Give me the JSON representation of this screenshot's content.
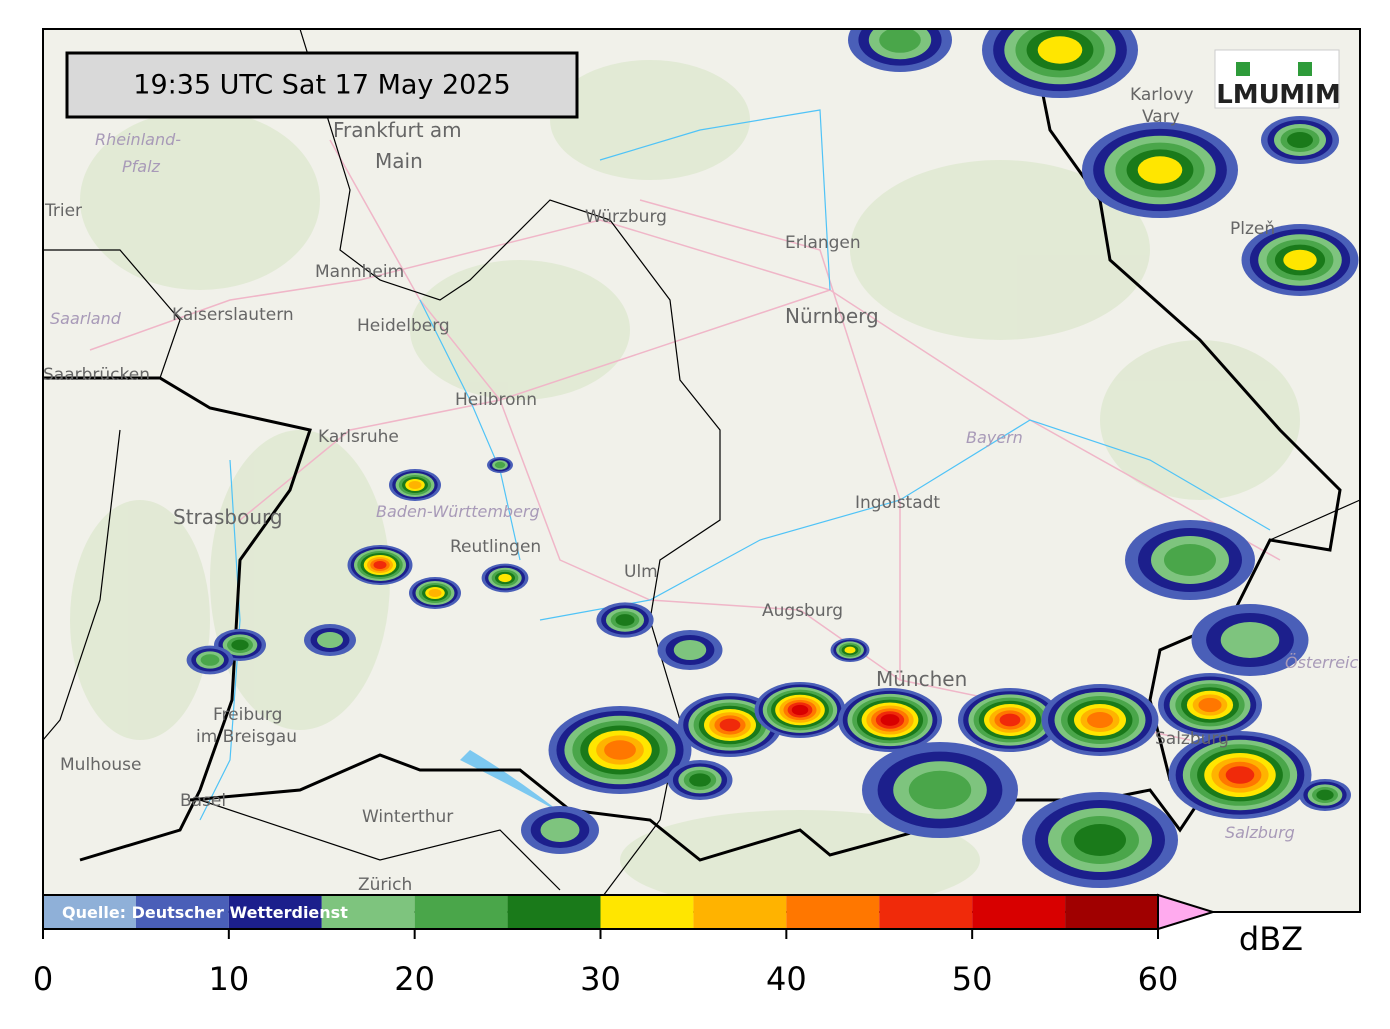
{
  "timestamp": "19:35 UTC  Sat 17 May 2025",
  "logos": [
    "LMU",
    "MIM"
  ],
  "map": {
    "cities": [
      "Frankfurt am",
      "Main",
      "Trier",
      "Würzburg",
      "Karlovy",
      "Vary",
      "Erlangen",
      "Nürnberg",
      "Mannheim",
      "Kaiserslautern",
      "Heidelberg",
      "Saarbrücken",
      "Heilbronn",
      "Karlsruhe",
      "Plzeň",
      "Ingolstadt",
      "Strasbourg",
      "Reutlingen",
      "Ulm",
      "Augsburg",
      "München",
      "Freiburg",
      "im Breisgau",
      "Mulhouse",
      "Basel",
      "Winterthur",
      "Zürich",
      "Salzburg"
    ],
    "regions": [
      "Rheinland-",
      "Pfalz",
      "Saarland",
      "Bayern",
      "Baden-Württemberg",
      "Österreich",
      "Salzburg"
    ]
  },
  "colorbar": {
    "bounds": [
      0,
      5,
      10,
      15,
      20,
      25,
      30,
      35,
      40,
      45,
      50,
      55,
      60
    ],
    "colors": [
      "#8fb0d8",
      "#4a5fb8",
      "#1c1f8c",
      "#7ec47e",
      "#4aa64a",
      "#1a7a1a",
      "#ffe600",
      "#ffb300",
      "#ff7700",
      "#f02a0a",
      "#d80000",
      "#a00000"
    ],
    "extend_color": "#ffaaee",
    "ticks": [
      0,
      10,
      20,
      30,
      40,
      50,
      60
    ],
    "label": "dBZ",
    "source": "Quelle: Deutscher Wetterdienst"
  }
}
